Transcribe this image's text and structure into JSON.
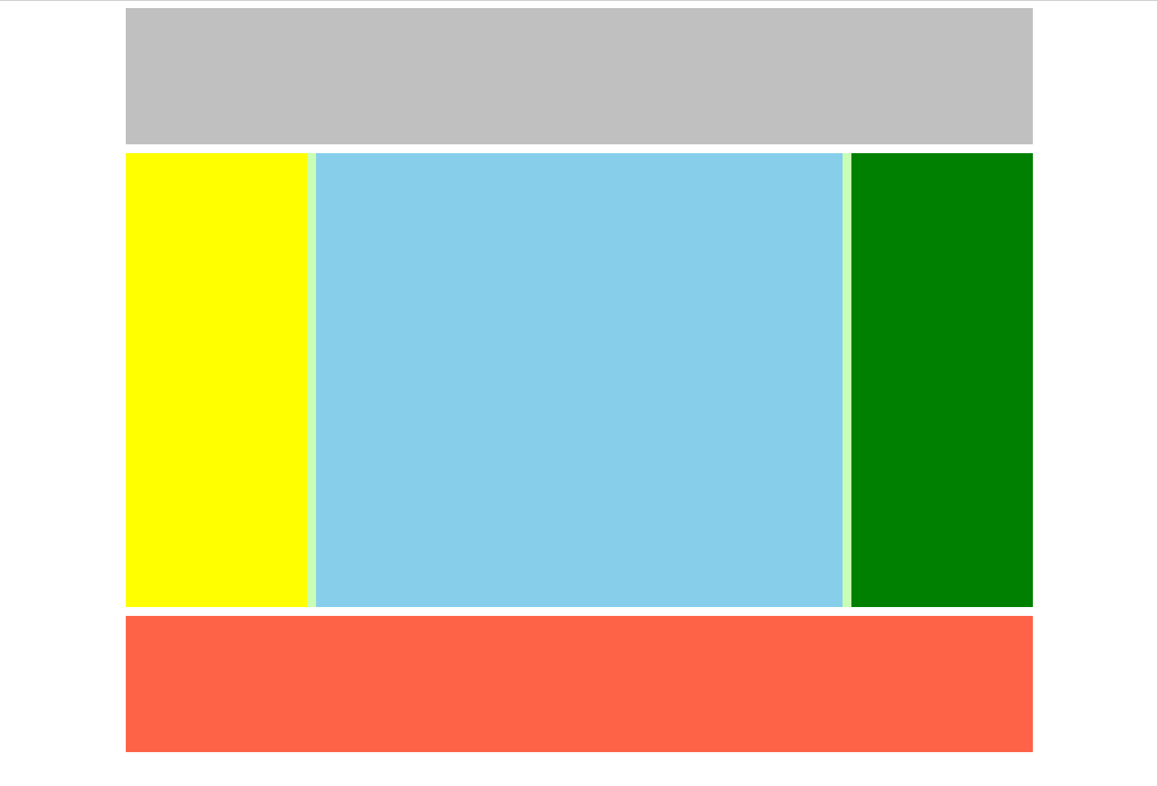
{
  "colors": {
    "top_rule": "#c8c8c8",
    "header": "#c0c0c0",
    "left_panel": "#ffff00",
    "divider": "#c8ffb4",
    "center_panel": "#87ceeb",
    "right_panel": "#008000",
    "footer": "#ff6347"
  }
}
